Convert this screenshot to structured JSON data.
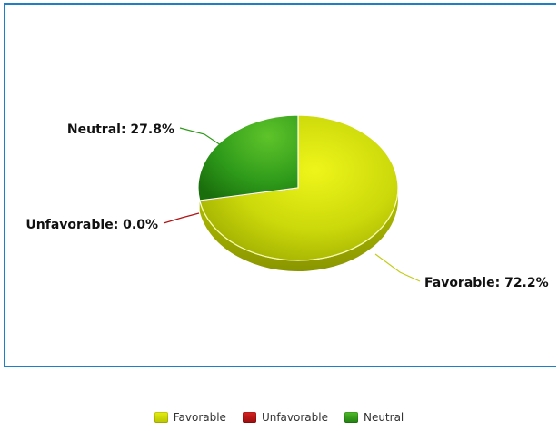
{
  "chart_data": {
    "type": "pie",
    "slices": [
      {
        "name": "Favorable",
        "value": 72.2,
        "label": "Favorable: 72.2%",
        "color": "#c8d400"
      },
      {
        "name": "Unfavorable",
        "value": 0.0,
        "label": "Unfavorable: 0.0%",
        "color": "#b31212"
      },
      {
        "name": "Neutral",
        "value": 27.8,
        "label": "Neutral: 27.8%",
        "color": "#2e9a1a"
      }
    ],
    "legend_position": "bottom-center"
  }
}
